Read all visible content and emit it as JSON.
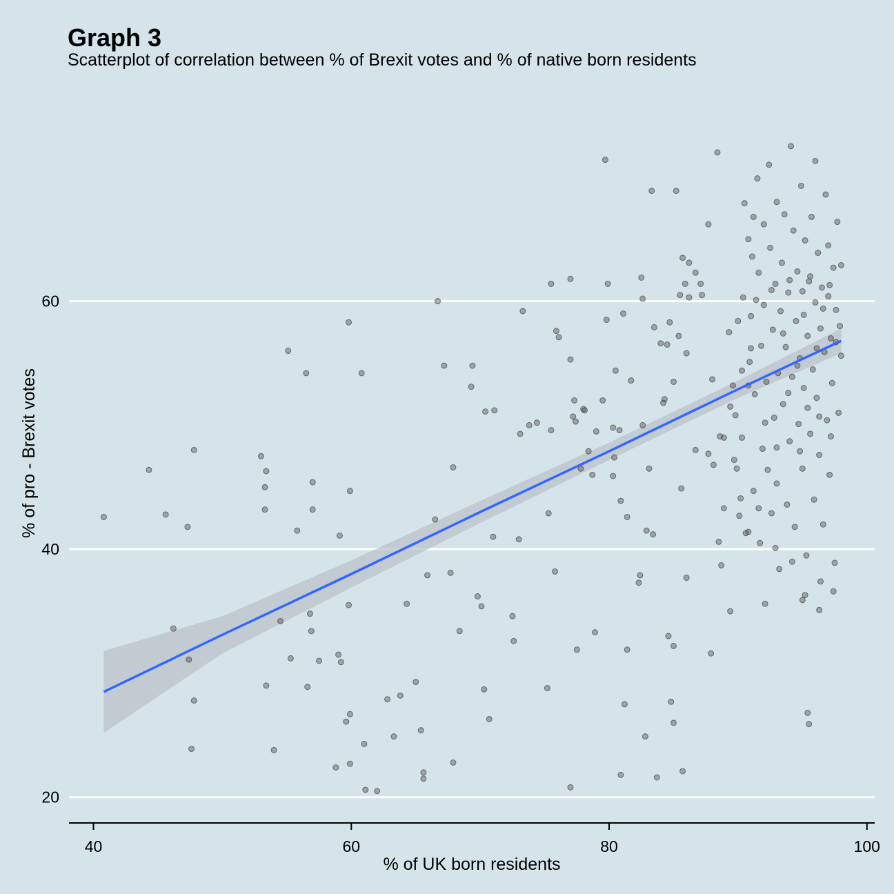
{
  "chart_data": {
    "type": "scatter",
    "title": "Graph 3",
    "subtitle": "Scatterplot of correlation between % of Brexit votes and % of native born residents",
    "xlabel": "% of UK born residents",
    "ylabel": "% of pro - Brexit votes",
    "xlim": [
      38.1,
      100.6
    ],
    "ylim": [
      18.65,
      76.5
    ],
    "x_ticks": [
      40,
      60,
      80,
      100
    ],
    "y_ticks": [
      20,
      40,
      60
    ],
    "grid": "horizontal major lines",
    "colors": {
      "background": "#d5e4eb",
      "points": "#555555",
      "fit_line": "#3366ff",
      "ribbon": "#bcc3c9",
      "gridline": "#ffffff"
    },
    "trend": {
      "method": "linear regression with confidence band",
      "x": [
        40.8,
        50,
        60,
        70,
        80,
        90,
        98
      ],
      "y": [
        28.5,
        33.1,
        38.0,
        43.0,
        47.9,
        52.9,
        56.8
      ],
      "ci_lower": [
        25.2,
        31.6,
        36.9,
        42.1,
        47.2,
        52.2,
        55.8
      ],
      "ci_upper": [
        31.8,
        34.6,
        39.1,
        43.9,
        48.6,
        53.6,
        57.8
      ]
    },
    "points": [
      [
        40.8,
        42.6
      ],
      [
        44.3,
        46.4
      ],
      [
        45.6,
        42.8
      ],
      [
        46.2,
        33.6
      ],
      [
        47.3,
        41.8
      ],
      [
        47.4,
        31.1
      ],
      [
        47.6,
        23.9
      ],
      [
        47.8,
        48.0
      ],
      [
        47.8,
        27.8
      ],
      [
        53.0,
        47.5
      ],
      [
        53.3,
        45.0
      ],
      [
        53.3,
        43.2
      ],
      [
        53.4,
        46.3
      ],
      [
        53.4,
        29.0
      ],
      [
        54.0,
        23.8
      ],
      [
        54.5,
        34.2
      ],
      [
        55.1,
        56.0
      ],
      [
        55.3,
        31.2
      ],
      [
        55.8,
        41.5
      ],
      [
        56.5,
        54.2
      ],
      [
        56.6,
        28.9
      ],
      [
        56.8,
        34.8
      ],
      [
        56.9,
        33.4
      ],
      [
        57.0,
        45.4
      ],
      [
        57.0,
        43.2
      ],
      [
        57.5,
        31.0
      ],
      [
        58.8,
        22.4
      ],
      [
        59.0,
        31.5
      ],
      [
        59.1,
        41.1
      ],
      [
        59.2,
        30.9
      ],
      [
        59.6,
        26.1
      ],
      [
        59.8,
        35.5
      ],
      [
        59.8,
        58.3
      ],
      [
        59.9,
        26.7
      ],
      [
        59.9,
        44.7
      ],
      [
        59.9,
        22.7
      ],
      [
        60.8,
        54.2
      ],
      [
        61.0,
        24.3
      ],
      [
        61.1,
        20.6
      ],
      [
        62.0,
        20.5
      ],
      [
        62.8,
        27.9
      ],
      [
        63.3,
        24.9
      ],
      [
        63.8,
        28.2
      ],
      [
        64.3,
        35.6
      ],
      [
        65.0,
        29.3
      ],
      [
        65.4,
        25.4
      ],
      [
        65.6,
        22.0
      ],
      [
        65.6,
        21.5
      ],
      [
        65.9,
        37.9
      ],
      [
        66.5,
        42.4
      ],
      [
        66.7,
        60.0
      ],
      [
        67.2,
        54.8
      ],
      [
        67.7,
        38.1
      ],
      [
        67.9,
        46.6
      ],
      [
        67.9,
        22.8
      ],
      [
        68.4,
        33.4
      ],
      [
        69.3,
        53.1
      ],
      [
        69.4,
        54.8
      ],
      [
        69.8,
        36.2
      ],
      [
        70.1,
        35.4
      ],
      [
        70.3,
        28.7
      ],
      [
        70.4,
        51.1
      ],
      [
        70.7,
        26.3
      ],
      [
        71.0,
        41.0
      ],
      [
        71.1,
        51.2
      ],
      [
        72.5,
        34.6
      ],
      [
        72.6,
        32.6
      ],
      [
        73.0,
        40.8
      ],
      [
        73.1,
        49.3
      ],
      [
        73.3,
        59.2
      ],
      [
        73.8,
        50.0
      ],
      [
        74.4,
        50.2
      ],
      [
        75.2,
        28.8
      ],
      [
        75.3,
        42.9
      ],
      [
        75.5,
        61.4
      ],
      [
        75.5,
        49.6
      ],
      [
        75.8,
        38.2
      ],
      [
        75.9,
        57.6
      ],
      [
        76.1,
        57.1
      ],
      [
        77.0,
        20.8
      ],
      [
        77.0,
        55.3
      ],
      [
        77.0,
        61.8
      ],
      [
        77.2,
        50.7
      ],
      [
        77.3,
        52.0
      ],
      [
        77.4,
        50.3
      ],
      [
        77.5,
        31.9
      ],
      [
        77.8,
        46.5
      ],
      [
        78.0,
        51.3
      ],
      [
        78.1,
        51.2
      ],
      [
        78.4,
        47.9
      ],
      [
        78.7,
        46.0
      ],
      [
        78.9,
        33.3
      ],
      [
        79.0,
        49.5
      ],
      [
        79.5,
        52.0
      ],
      [
        79.7,
        71.4
      ],
      [
        79.8,
        58.5
      ],
      [
        79.9,
        61.4
      ],
      [
        80.3,
        49.8
      ],
      [
        80.3,
        45.9
      ],
      [
        80.4,
        47.4
      ],
      [
        80.5,
        54.4
      ],
      [
        80.8,
        49.6
      ],
      [
        80.9,
        43.9
      ],
      [
        80.9,
        21.8
      ],
      [
        81.1,
        59.0
      ],
      [
        81.2,
        27.5
      ],
      [
        81.4,
        31.9
      ],
      [
        81.4,
        42.6
      ],
      [
        81.7,
        53.6
      ],
      [
        82.3,
        37.3
      ],
      [
        82.4,
        37.9
      ],
      [
        82.5,
        61.9
      ],
      [
        82.6,
        50.0
      ],
      [
        82.6,
        60.2
      ],
      [
        82.8,
        24.9
      ],
      [
        82.9,
        41.5
      ],
      [
        83.1,
        46.5
      ],
      [
        83.3,
        68.9
      ],
      [
        83.4,
        41.2
      ],
      [
        83.5,
        57.9
      ],
      [
        83.7,
        21.6
      ],
      [
        84.0,
        56.6
      ],
      [
        84.2,
        51.8
      ],
      [
        84.3,
        52.1
      ],
      [
        84.5,
        56.5
      ],
      [
        84.6,
        33.0
      ],
      [
        84.7,
        58.3
      ],
      [
        84.8,
        27.7
      ],
      [
        85.0,
        53.5
      ],
      [
        85.0,
        26.0
      ],
      [
        85.0,
        32.2
      ],
      [
        85.2,
        68.9
      ],
      [
        85.4,
        57.2
      ],
      [
        85.5,
        60.5
      ],
      [
        85.6,
        44.9
      ],
      [
        85.7,
        63.5
      ],
      [
        85.7,
        22.1
      ],
      [
        85.9,
        61.4
      ],
      [
        86.0,
        37.7
      ],
      [
        86.0,
        55.8
      ],
      [
        86.2,
        63.1
      ],
      [
        86.2,
        60.3
      ],
      [
        86.7,
        48.0
      ],
      [
        86.7,
        62.3
      ],
      [
        87.1,
        61.4
      ],
      [
        87.2,
        60.5
      ],
      [
        87.7,
        47.7
      ],
      [
        87.7,
        66.2
      ],
      [
        87.9,
        31.6
      ],
      [
        88.0,
        53.7
      ],
      [
        88.1,
        46.8
      ],
      [
        88.4,
        72.0
      ],
      [
        88.5,
        40.6
      ],
      [
        88.6,
        49.1
      ],
      [
        88.7,
        38.7
      ],
      [
        88.9,
        43.3
      ],
      [
        88.9,
        49.0
      ],
      [
        89.3,
        57.5
      ],
      [
        89.4,
        51.5
      ],
      [
        89.4,
        35.0
      ],
      [
        89.6,
        53.2
      ],
      [
        89.7,
        47.2
      ],
      [
        89.8,
        50.8
      ],
      [
        89.9,
        46.5
      ],
      [
        90.0,
        58.4
      ],
      [
        90.1,
        42.7
      ],
      [
        90.2,
        44.1
      ],
      [
        90.3,
        49.0
      ],
      [
        90.3,
        54.4
      ],
      [
        90.8,
        41.4
      ],
      [
        90.8,
        53.2
      ],
      [
        91.0,
        56.2
      ]
    ],
    "dense_points": [
      [
        90.4,
        60.3
      ],
      [
        90.5,
        67.9
      ],
      [
        90.6,
        41.3
      ],
      [
        90.8,
        65.0
      ],
      [
        90.9,
        55.1
      ],
      [
        91.0,
        58.8
      ],
      [
        91.1,
        63.6
      ],
      [
        91.2,
        44.7
      ],
      [
        91.3,
        52.5
      ],
      [
        91.4,
        60.1
      ],
      [
        91.5,
        69.9
      ],
      [
        91.6,
        62.3
      ],
      [
        91.7,
        40.5
      ],
      [
        91.8,
        56.4
      ],
      [
        91.9,
        48.1
      ],
      [
        92.0,
        66.2
      ],
      [
        92.0,
        59.7
      ],
      [
        92.1,
        35.6
      ],
      [
        92.2,
        53.5
      ],
      [
        92.3,
        46.4
      ],
      [
        92.4,
        71.0
      ],
      [
        92.5,
        64.3
      ],
      [
        92.6,
        42.9
      ],
      [
        92.7,
        57.7
      ],
      [
        92.8,
        50.6
      ],
      [
        92.9,
        61.4
      ],
      [
        93.0,
        68.0
      ],
      [
        93.0,
        45.3
      ],
      [
        93.1,
        54.2
      ],
      [
        93.2,
        38.4
      ],
      [
        93.3,
        59.2
      ],
      [
        93.4,
        63.1
      ],
      [
        93.5,
        51.7
      ],
      [
        93.6,
        67.0
      ],
      [
        93.7,
        56.3
      ],
      [
        93.8,
        43.6
      ],
      [
        93.9,
        60.7
      ],
      [
        94.0,
        48.7
      ],
      [
        94.1,
        72.5
      ],
      [
        94.2,
        53.9
      ],
      [
        94.3,
        65.7
      ],
      [
        94.4,
        41.8
      ],
      [
        94.5,
        58.4
      ],
      [
        94.6,
        62.4
      ],
      [
        94.7,
        50.1
      ],
      [
        94.8,
        55.4
      ],
      [
        94.9,
        69.3
      ],
      [
        95.0,
        46.5
      ],
      [
        95.0,
        60.8
      ],
      [
        95.1,
        53.0
      ],
      [
        95.2,
        64.9
      ],
      [
        95.3,
        39.5
      ],
      [
        95.4,
        57.2
      ],
      [
        95.5,
        61.6
      ],
      [
        95.6,
        49.3
      ],
      [
        95.7,
        66.8
      ],
      [
        95.8,
        54.5
      ],
      [
        95.9,
        44.0
      ],
      [
        96.0,
        59.9
      ],
      [
        96.0,
        71.3
      ],
      [
        96.1,
        52.2
      ],
      [
        96.2,
        63.9
      ],
      [
        96.3,
        47.6
      ],
      [
        96.4,
        57.8
      ],
      [
        96.5,
        61.1
      ],
      [
        96.6,
        42.0
      ],
      [
        96.7,
        55.9
      ],
      [
        96.8,
        68.6
      ],
      [
        96.9,
        50.4
      ],
      [
        97.0,
        60.4
      ],
      [
        97.0,
        64.5
      ],
      [
        97.1,
        46.0
      ],
      [
        97.2,
        57.0
      ],
      [
        97.3,
        53.4
      ],
      [
        97.4,
        62.7
      ],
      [
        97.5,
        38.9
      ],
      [
        97.6,
        59.3
      ],
      [
        97.7,
        66.4
      ],
      [
        97.8,
        51.0
      ],
      [
        97.9,
        58.0
      ],
      [
        98.0,
        62.9
      ],
      [
        98.0,
        55.6
      ],
      [
        91.2,
        66.8
      ],
      [
        92.6,
        60.9
      ],
      [
        93.5,
        57.4
      ],
      [
        94.0,
        61.7
      ],
      [
        94.6,
        54.8
      ],
      [
        95.1,
        58.9
      ],
      [
        95.6,
        62.0
      ],
      [
        96.1,
        56.2
      ],
      [
        96.6,
        59.4
      ],
      [
        97.1,
        61.3
      ],
      [
        97.6,
        56.7
      ],
      [
        92.1,
        50.2
      ],
      [
        93.0,
        48.2
      ],
      [
        93.9,
        52.6
      ],
      [
        94.8,
        47.9
      ],
      [
        95.4,
        51.4
      ],
      [
        96.3,
        50.7
      ],
      [
        97.2,
        49.1
      ],
      [
        91.6,
        43.3
      ],
      [
        92.9,
        40.1
      ],
      [
        94.2,
        39.0
      ],
      [
        95.2,
        36.3
      ],
      [
        96.4,
        37.4
      ],
      [
        97.4,
        36.6
      ],
      [
        95.4,
        26.8
      ],
      [
        95.5,
        25.9
      ],
      [
        96.3,
        35.1
      ],
      [
        95.0,
        35.9
      ]
    ]
  }
}
